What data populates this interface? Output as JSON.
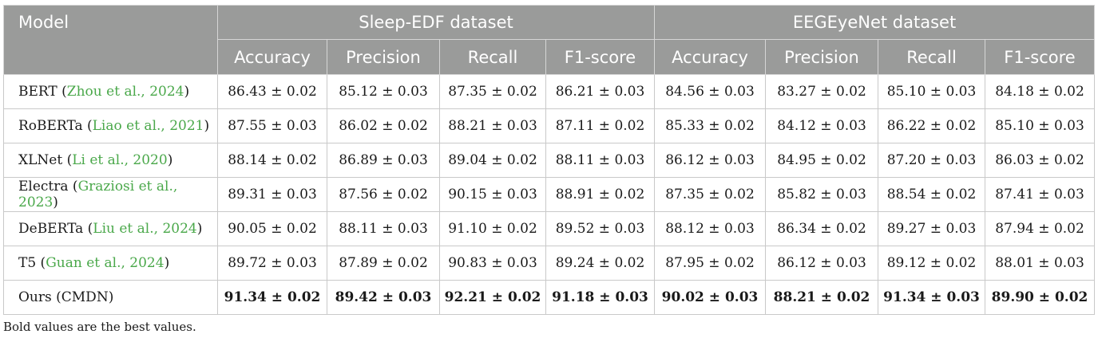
{
  "table": {
    "model_header": "Model",
    "groups": [
      "Sleep-EDF dataset",
      "EEGEyeNet dataset"
    ],
    "metrics": [
      "Accuracy",
      "Precision",
      "Recall",
      "F1-score",
      "Accuracy",
      "Precision",
      "Recall",
      "F1-score"
    ],
    "rows": [
      {
        "name": "BERT",
        "cite": "Zhou et al., 2024",
        "values": [
          "86.43 ± 0.02",
          "85.12 ± 0.03",
          "87.35 ± 0.02",
          "86.21 ± 0.03",
          "84.56 ± 0.03",
          "83.27 ± 0.02",
          "85.10 ± 0.03",
          "84.18 ± 0.02"
        ]
      },
      {
        "name": "RoBERTa",
        "cite": "Liao et al., 2021",
        "values": [
          "87.55 ± 0.03",
          "86.02 ± 0.02",
          "88.21 ± 0.03",
          "87.11 ± 0.02",
          "85.33 ± 0.02",
          "84.12 ± 0.03",
          "86.22 ± 0.02",
          "85.10 ± 0.03"
        ]
      },
      {
        "name": "XLNet",
        "cite": "Li et al., 2020",
        "values": [
          "88.14 ± 0.02",
          "86.89 ± 0.03",
          "89.04 ± 0.02",
          "88.11 ± 0.03",
          "86.12 ± 0.03",
          "84.95 ± 0.02",
          "87.20 ± 0.03",
          "86.03 ± 0.02"
        ]
      },
      {
        "name": "Electra",
        "cite": "Graziosi et al., 2023",
        "values": [
          "89.31 ± 0.03",
          "87.56 ± 0.02",
          "90.15 ± 0.03",
          "88.91 ± 0.02",
          "87.35 ± 0.02",
          "85.82 ± 0.03",
          "88.54 ± 0.02",
          "87.41 ± 0.03"
        ]
      },
      {
        "name": "DeBERTa",
        "cite": "Liu et al., 2024",
        "values": [
          "90.05 ± 0.02",
          "88.11 ± 0.03",
          "91.10 ± 0.02",
          "89.52 ± 0.03",
          "88.12 ± 0.03",
          "86.34 ± 0.02",
          "89.27 ± 0.03",
          "87.94 ± 0.02"
        ]
      },
      {
        "name": "T5",
        "cite": "Guan et al., 2024",
        "values": [
          "89.72 ± 0.03",
          "87.89 ± 0.02",
          "90.83 ± 0.03",
          "89.24 ± 0.02",
          "87.95 ± 0.02",
          "86.12 ± 0.03",
          "89.12 ± 0.02",
          "88.01 ± 0.03"
        ]
      },
      {
        "name": "Ours (CMDN)",
        "cite": "",
        "values": [
          "91.34 ± 0.02",
          "89.42 ± 0.03",
          "92.21 ± 0.02",
          "91.18 ± 0.03",
          "90.02 ± 0.03",
          "88.21 ± 0.02",
          "91.34 ± 0.03",
          "89.90 ± 0.02"
        ]
      }
    ],
    "footnote": "Bold values are the best values."
  }
}
